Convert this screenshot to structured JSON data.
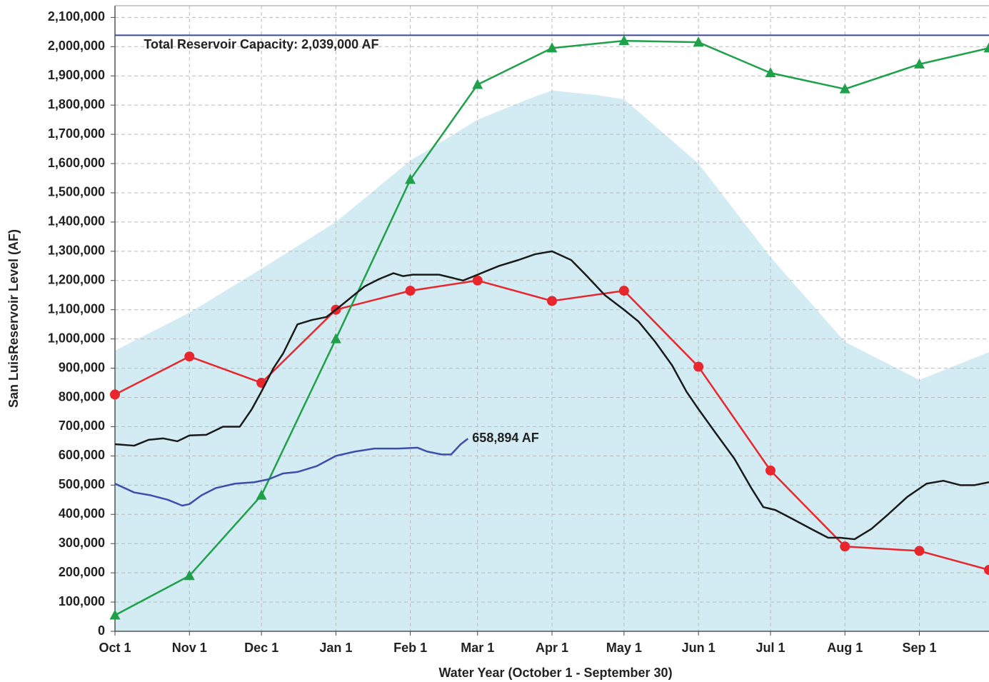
{
  "chart_data": {
    "type": "line",
    "y_label": "San LuisReservoir Level (AF)",
    "x_label": "Water Year (October 1 - September 30)",
    "xlim": [
      0,
      364
    ],
    "ylim": [
      0,
      2140000
    ],
    "grid": true,
    "xticks": [
      {
        "value": 0,
        "label": "Oct 1"
      },
      {
        "value": 31,
        "label": "Nov 1"
      },
      {
        "value": 61,
        "label": "Dec 1"
      },
      {
        "value": 92,
        "label": "Jan 1"
      },
      {
        "value": 123,
        "label": "Feb 1"
      },
      {
        "value": 151,
        "label": "Mar 1"
      },
      {
        "value": 182,
        "label": "Apr 1"
      },
      {
        "value": 212,
        "label": "May 1"
      },
      {
        "value": 243,
        "label": "Jun 1"
      },
      {
        "value": 273,
        "label": "Jul 1"
      },
      {
        "value": 304,
        "label": "Aug 1"
      },
      {
        "value": 335,
        "label": "Sep 1"
      }
    ],
    "yticks": [
      0,
      {
        "value": 100000,
        "label": "100,000"
      },
      {
        "value": 200000,
        "label": "200,000"
      },
      {
        "value": 300000,
        "label": "300,000"
      },
      {
        "value": 400000,
        "label": "400,000"
      },
      {
        "value": 500000,
        "label": "500,000"
      },
      {
        "value": 600000,
        "label": "600,000"
      },
      {
        "value": 700000,
        "label": "700,000"
      },
      {
        "value": 800000,
        "label": "800,000"
      },
      {
        "value": 900000,
        "label": "900,000"
      },
      {
        "value": 1000000,
        "label": "1,000,000"
      },
      {
        "value": 1100000,
        "label": "1,100,000"
      },
      {
        "value": 1200000,
        "label": "1,200,000"
      },
      {
        "value": 1300000,
        "label": "1,300,000"
      },
      {
        "value": 1400000,
        "label": "1,400,000"
      },
      {
        "value": 1500000,
        "label": "1,500,000"
      },
      {
        "value": 1600000,
        "label": "1,600,000"
      },
      {
        "value": 1700000,
        "label": "1,700,000"
      },
      {
        "value": 1800000,
        "label": "1,800,000"
      },
      {
        "value": 1900000,
        "label": "1,900,000"
      },
      {
        "value": 2000000,
        "label": "2,000,000"
      },
      {
        "value": 2100000,
        "label": "2,100,000"
      }
    ],
    "reference_line": {
      "value": 2039000,
      "label": "Total Reservoir Capacity: 2,039,000 AF",
      "color": "#3a4a9c"
    },
    "series": [
      {
        "style": "area",
        "color": "#d3ebf3",
        "x": [
          0,
          31,
          61,
          92,
          123,
          151,
          172,
          182,
          200,
          212,
          243,
          273,
          304,
          335,
          364
        ],
        "values": [
          960000,
          1090000,
          1240000,
          1400000,
          1610000,
          1750000,
          1820000,
          1850000,
          1835000,
          1820000,
          1600000,
          1280000,
          990000,
          860000,
          955000
        ]
      },
      {
        "style": "line",
        "color": "#e8262d",
        "marker": "circle",
        "x": [
          0,
          31,
          61,
          92,
          123,
          151,
          182,
          212,
          243,
          273,
          304,
          335,
          364
        ],
        "values": [
          810000,
          940000,
          850000,
          1100000,
          1165000,
          1200000,
          1130000,
          1165000,
          905000,
          550000,
          290000,
          275000,
          210000
        ]
      },
      {
        "style": "line",
        "color": "#1fa04a",
        "marker": "triangle",
        "x": [
          0,
          31,
          61,
          92,
          123,
          151,
          182,
          212,
          243,
          273,
          304,
          335,
          364
        ],
        "values": [
          55000,
          190000,
          465000,
          1000000,
          1545000,
          1870000,
          1995000,
          2020000,
          2015000,
          1910000,
          1855000,
          1940000,
          1995000
        ]
      },
      {
        "style": "line",
        "color": "#1a1a1a",
        "x": [
          0,
          8,
          14,
          20,
          26,
          31,
          38,
          45,
          50,
          52,
          57,
          61,
          66,
          70,
          76,
          82,
          88,
          92,
          98,
          104,
          110,
          116,
          120,
          124,
          135,
          145,
          151,
          160,
          168,
          175,
          182,
          190,
          196,
          204,
          212,
          218,
          225,
          232,
          238,
          243,
          250,
          258,
          265,
          270,
          275,
          282,
          290,
          297,
          302,
          308,
          315,
          322,
          330,
          338,
          345,
          352,
          358,
          364
        ],
        "values": [
          640000,
          635000,
          655000,
          660000,
          650000,
          670000,
          672000,
          700000,
          700000,
          700000,
          760000,
          820000,
          900000,
          950000,
          1050000,
          1065000,
          1075000,
          1100000,
          1140000,
          1180000,
          1205000,
          1225000,
          1215000,
          1220000,
          1220000,
          1200000,
          1220000,
          1250000,
          1270000,
          1290000,
          1300000,
          1270000,
          1220000,
          1150000,
          1100000,
          1060000,
          990000,
          910000,
          820000,
          760000,
          680000,
          590000,
          490000,
          425000,
          415000,
          385000,
          350000,
          320000,
          320000,
          315000,
          350000,
          400000,
          460000,
          505000,
          515000,
          500000,
          500000,
          510000
        ]
      },
      {
        "style": "line",
        "color": "#3d4fa8",
        "end_label": "658,894 AF",
        "x": [
          0,
          8,
          15,
          22,
          28,
          31,
          36,
          42,
          50,
          58,
          64,
          70,
          76,
          84,
          92,
          100,
          108,
          118,
          126,
          130,
          136,
          140,
          144,
          147
        ],
        "values": [
          505000,
          475000,
          465000,
          450000,
          430000,
          435000,
          465000,
          490000,
          505000,
          510000,
          520000,
          540000,
          545000,
          565000,
          600000,
          615000,
          625000,
          625000,
          628000,
          615000,
          605000,
          605000,
          640000,
          658894
        ]
      }
    ]
  }
}
